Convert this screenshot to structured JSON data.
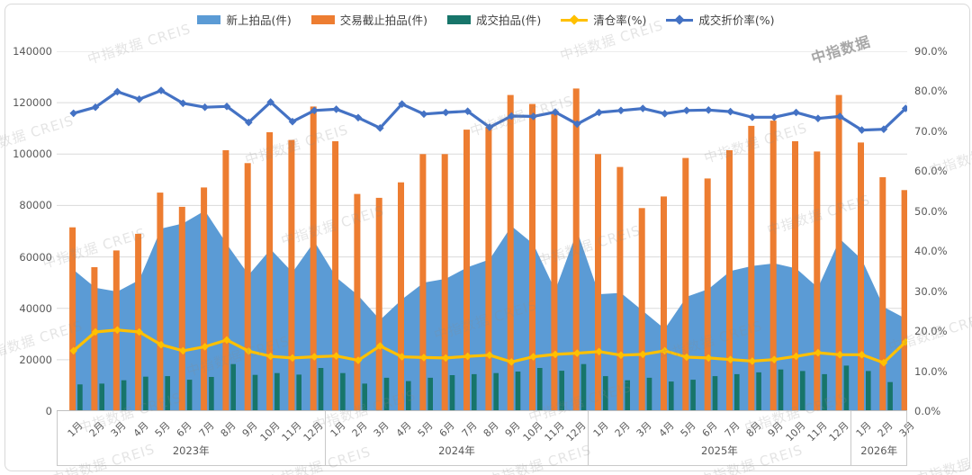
{
  "watermark": {
    "text": "中指数据  CREIS",
    "corner_text": "中指数据"
  },
  "chart_data": {
    "type": "combo",
    "description": "Monthly auction listings combo chart: area + bars on left axis (件), two lines on right axis (%)",
    "months": [
      "1月",
      "2月",
      "3月",
      "4月",
      "5月",
      "6月",
      "7月",
      "8月",
      "9月",
      "10月",
      "11月",
      "12月",
      "1月",
      "2月",
      "3月",
      "4月",
      "5月",
      "6月",
      "7月",
      "8月",
      "9月",
      "10月",
      "11月",
      "12月",
      "1月",
      "2月",
      "3月",
      "4月",
      "5月",
      "6月",
      "7月",
      "8月",
      "9月",
      "10月",
      "11月",
      "12月",
      "1月",
      "2月",
      "3月"
    ],
    "year_groups": [
      {
        "label": "2023年",
        "count": 12
      },
      {
        "label": "2024年",
        "count": 12
      },
      {
        "label": "2025年",
        "count": 12
      },
      {
        "label": "2026年",
        "count": 3
      }
    ],
    "y_left": {
      "min": 0,
      "max": 140000,
      "ticks": [
        "140000",
        "120000",
        "100000",
        "80000",
        "60000",
        "40000",
        "20000",
        "0"
      ]
    },
    "y_right": {
      "min": 0,
      "max": 90,
      "ticks": [
        "90.0%",
        "80.0%",
        "70.0%",
        "60.0%",
        "50.0%",
        "40.0%",
        "30.0%",
        "20.0%",
        "10.0%",
        "0.0%"
      ]
    },
    "grid": true,
    "legend_position": "top",
    "series": [
      {
        "name": "新上拍品(件)",
        "type": "area",
        "axis": "left",
        "color": "#5B9BD5",
        "values": [
          55000,
          48000,
          46500,
          51000,
          71000,
          73000,
          78000,
          65000,
          53000,
          63000,
          54000,
          66000,
          52000,
          45000,
          35500,
          43500,
          50000,
          51500,
          56000,
          59000,
          72000,
          65000,
          47000,
          70000,
          45500,
          46000,
          39000,
          32000,
          44500,
          47500,
          54500,
          56500,
          57500,
          55500,
          48000,
          67000,
          59000,
          40500,
          36000
        ]
      },
      {
        "name": "交易截止拍品(件)",
        "type": "bar",
        "axis": "left",
        "color": "#ED7D31",
        "values": [
          71500,
          56000,
          62500,
          69000,
          85000,
          79500,
          87000,
          101500,
          96500,
          108500,
          105500,
          118500,
          105000,
          84500,
          83000,
          89000,
          100000,
          100000,
          109500,
          110500,
          123000,
          119500,
          116000,
          125500,
          100000,
          95000,
          79000,
          83500,
          98500,
          90500,
          101500,
          111000,
          113000,
          105000,
          101000,
          123000,
          104500,
          91000,
          86000
        ]
      },
      {
        "name": "成交拍品(件)",
        "type": "bar",
        "axis": "left",
        "color": "#17756A",
        "values": [
          10400,
          10700,
          12000,
          13400,
          13600,
          12200,
          13300,
          18300,
          14100,
          14800,
          14200,
          16800,
          14800,
          10700,
          13000,
          11700,
          13000,
          14000,
          14400,
          14800,
          15400,
          16800,
          15700,
          18300,
          13600,
          12000,
          13000,
          11500,
          12200,
          13600,
          14400,
          15100,
          16200,
          15600,
          14400,
          17700,
          15600,
          11300,
          15100
        ]
      },
      {
        "name": "清仓率(%)",
        "type": "line",
        "axis": "right",
        "color": "#FFC000",
        "values": [
          15.1,
          19.8,
          20.3,
          19.8,
          16.6,
          15.1,
          16.1,
          17.8,
          15.0,
          13.7,
          13.3,
          13.6,
          13.8,
          12.7,
          16.3,
          13.6,
          13.4,
          13.3,
          13.7,
          14.0,
          12.3,
          13.6,
          14.2,
          14.5,
          14.9,
          14.0,
          14.2,
          15.1,
          13.5,
          13.3,
          12.9,
          12.5,
          12.9,
          13.7,
          14.6,
          14.1,
          14.1,
          12.1,
          17.3
        ]
      },
      {
        "name": "成交折价率(%)",
        "type": "line",
        "axis": "right",
        "color": "#4472C4",
        "values": [
          74.5,
          76.0,
          79.9,
          78.0,
          80.2,
          77.0,
          76.0,
          76.2,
          72.2,
          77.3,
          72.4,
          75.2,
          75.5,
          73.4,
          70.8,
          76.8,
          74.3,
          74.7,
          75.0,
          71.0,
          73.8,
          73.7,
          74.8,
          71.8,
          74.7,
          75.2,
          75.7,
          74.4,
          75.2,
          75.3,
          74.9,
          73.5,
          73.5,
          74.7,
          73.2,
          73.7,
          70.3,
          70.5,
          75.7
        ]
      }
    ]
  }
}
